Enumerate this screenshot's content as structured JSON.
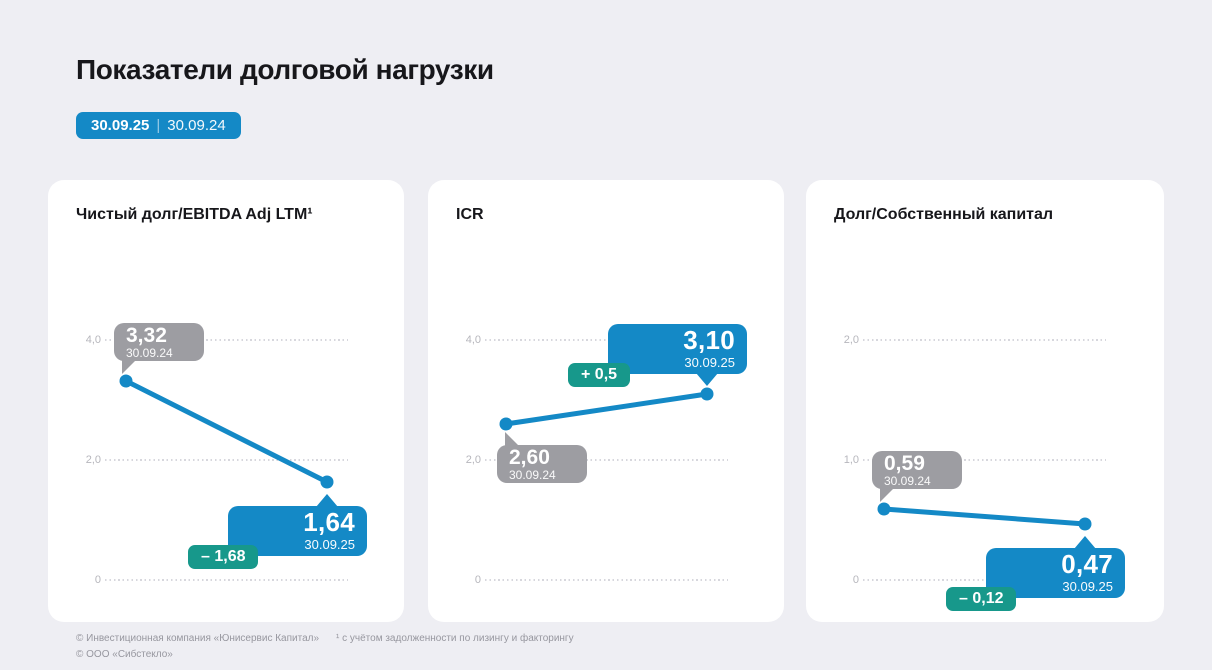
{
  "page": {
    "title": "Показатели долговой нагрузки",
    "badge": {
      "date_primary": "30.09.25",
      "separator": "|",
      "date_secondary": "30.09.24"
    }
  },
  "colors": {
    "background": "#EEEEF3",
    "card": "#FFFFFF",
    "accent_blue": "#1489C6",
    "accent_teal": "#17988B",
    "neutral_gray": "#9D9DA2"
  },
  "chart_data": [
    {
      "type": "line",
      "title": "Чистый долг/EBITDA Adj LTM¹",
      "x": [
        "30.09.24",
        "30.09.25"
      ],
      "values": [
        3.32,
        1.64
      ],
      "point_labels": [
        "3,32",
        "1,64"
      ],
      "delta_label": "– 1,68",
      "delta_value": -1.68,
      "ylim": [
        0,
        4.5
      ],
      "yticks": [
        {
          "label": "4,0",
          "value": 4.0
        },
        {
          "label": "2,0",
          "value": 2.0
        },
        {
          "label": "0",
          "value": 0
        }
      ],
      "grid": "horizontal-dotted",
      "legend_position": "none"
    },
    {
      "type": "line",
      "title": "ICR",
      "x": [
        "30.09.24",
        "30.09.25"
      ],
      "values": [
        2.6,
        3.1
      ],
      "point_labels": [
        "2,60",
        "3,10"
      ],
      "delta_label": "+ 0,5",
      "delta_value": 0.5,
      "ylim": [
        0,
        4.5
      ],
      "yticks": [
        {
          "label": "4,0",
          "value": 4.0
        },
        {
          "label": "2,0",
          "value": 2.0
        },
        {
          "label": "0",
          "value": 0
        }
      ],
      "grid": "horizontal-dotted",
      "legend_position": "none"
    },
    {
      "type": "line",
      "title": "Долг/Собственный капитал",
      "x": [
        "30.09.24",
        "30.09.25"
      ],
      "values": [
        0.59,
        0.47
      ],
      "point_labels": [
        "0,59",
        "0,47"
      ],
      "delta_label": "– 0,12",
      "delta_value": -0.12,
      "ylim": [
        0,
        2.25
      ],
      "yticks": [
        {
          "label": "2,0",
          "value": 2.0
        },
        {
          "label": "1,0",
          "value": 1.0
        },
        {
          "label": "0",
          "value": 0
        }
      ],
      "grid": "horizontal-dotted",
      "legend_position": "none"
    }
  ],
  "footer": {
    "copyright_line1": "© Инвестиционная компания «Юнисервис Капитал»",
    "copyright_line2": "© ООО «Сибстекло»",
    "footnote": "¹ с учётом задолженности по лизингу и факторингу"
  }
}
